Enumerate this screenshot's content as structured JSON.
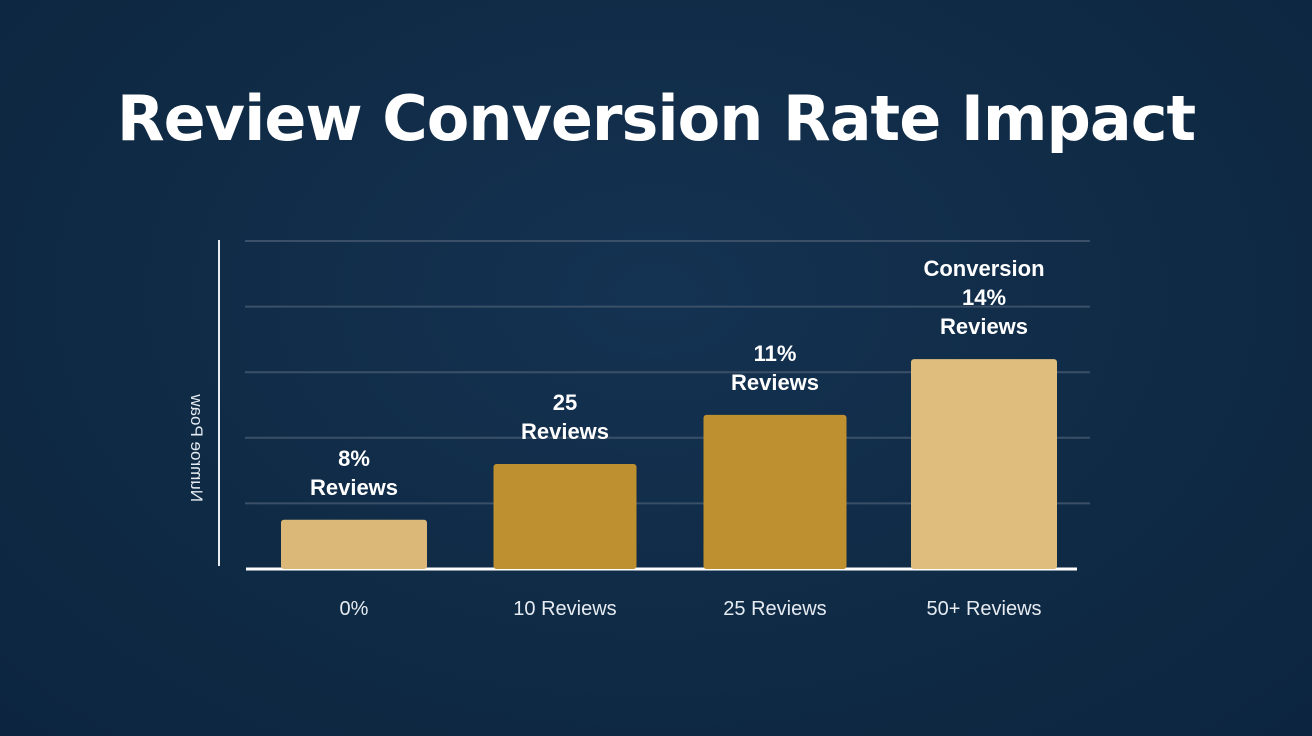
{
  "chart_data": {
    "type": "bar",
    "title": "Review Conversion Rate Impact",
    "ylabel": "Numroe Рoaw",
    "xlabel": "",
    "categories": [
      "0%",
      "10 Reviews",
      "25 Reviews",
      "50+ Reviews"
    ],
    "values": [
      1.5,
      3.2,
      4.7,
      6.4
    ],
    "data_labels": [
      [
        "8%",
        "Reviews"
      ],
      [
        "25",
        "Reviews"
      ],
      [
        "11%",
        "Reviews"
      ],
      [
        "Conversion",
        "14%",
        "Reviews"
      ]
    ],
    "ylim": [
      0,
      10
    ],
    "grid": true,
    "legend": "none",
    "colors": [
      "#dcb878",
      "#be902f",
      "#be902f",
      "#dfbd7c"
    ]
  }
}
